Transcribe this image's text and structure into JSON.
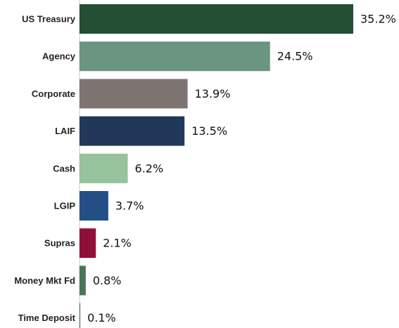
{
  "chart_data": {
    "type": "bar",
    "orientation": "horizontal",
    "categories": [
      "US Treasury",
      "Agency",
      "Corporate",
      "LAIF",
      "Cash",
      "LGIP",
      "Supras",
      "Money Mkt Fd",
      "Time Deposit"
    ],
    "values": [
      35.2,
      24.5,
      13.9,
      13.5,
      6.2,
      3.7,
      2.1,
      0.8,
      0.1
    ],
    "value_labels": [
      "35.2%",
      "24.5%",
      "13.9%",
      "13.5%",
      "6.2%",
      "3.7%",
      "2.1%",
      "0.8%",
      "0.1%"
    ],
    "colors": [
      "#234f35",
      "#6a9580",
      "#7e7572",
      "#22385a",
      "#96c29c",
      "#234f85",
      "#8e1039",
      "#4a7458",
      "#4a7458"
    ],
    "xlim": [
      0,
      35.2
    ],
    "title": "",
    "xlabel": "",
    "ylabel": "",
    "grid": false,
    "legend": "none"
  }
}
